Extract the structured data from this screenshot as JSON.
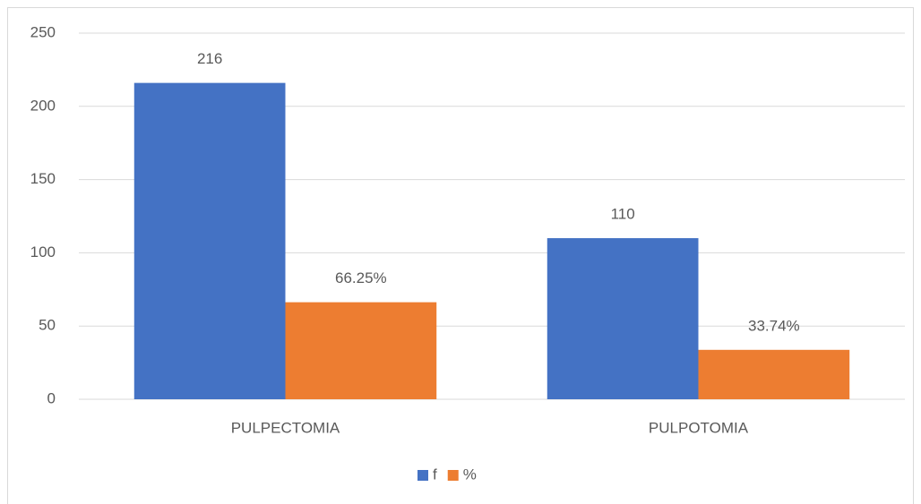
{
  "chart_data": {
    "type": "bar",
    "categories": [
      "PULPECTOMIA",
      "PULPOTOMIA"
    ],
    "series": [
      {
        "name": "f",
        "color": "#4472c4",
        "values": [
          216,
          110
        ]
      },
      {
        "name": "%",
        "color": "#ed7d31",
        "values": [
          66.25,
          33.74
        ],
        "value_labels": [
          "66.25%",
          "33.74%"
        ]
      }
    ],
    "ylim": [
      0,
      250
    ],
    "yticks": [
      0,
      50,
      100,
      150,
      200,
      250
    ],
    "grid": true,
    "legend": "bottom"
  }
}
